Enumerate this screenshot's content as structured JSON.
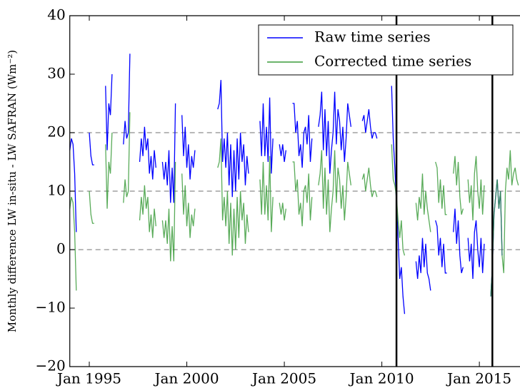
{
  "chart_data": {
    "type": "line",
    "ylabel": "Monthly difference LW in-situ - LW SAFRAN (Wm⁻²)",
    "x": [
      "1994-01",
      "1994-02",
      "1994-03",
      "1994-04",
      "1994-05",
      "1994-08",
      "1995-01",
      "1995-02",
      "1995-03",
      "1995-04",
      "1995-07",
      "1995-11",
      "1995-12",
      "1996-01",
      "1996-02",
      "1996-03",
      "1996-06",
      "1996-10",
      "1996-11",
      "1996-12",
      "1997-01",
      "1997-02",
      "1997-05",
      "1997-08",
      "1997-09",
      "1997-10",
      "1997-11",
      "1997-12",
      "1998-01",
      "1998-02",
      "1998-03",
      "1998-04",
      "1998-05",
      "1998-06",
      "1998-08",
      "1998-10",
      "1998-11",
      "1998-12",
      "1999-01",
      "1999-02",
      "1999-03",
      "1999-04",
      "1999-05",
      "1999-06",
      "1999-08",
      "1999-10",
      "1999-11",
      "1999-12",
      "2000-01",
      "2000-02",
      "2000-03",
      "2000-04",
      "2000-05",
      "2000-06",
      "2001-01",
      "2001-08",
      "2001-09",
      "2001-10",
      "2001-11",
      "2001-12",
      "2002-01",
      "2002-02",
      "2002-03",
      "2002-04",
      "2002-05",
      "2002-06",
      "2002-07",
      "2002-08",
      "2002-09",
      "2002-10",
      "2002-11",
      "2002-12",
      "2003-01",
      "2003-02",
      "2003-03",
      "2003-06",
      "2003-10",
      "2003-11",
      "2003-12",
      "2004-01",
      "2004-02",
      "2004-03",
      "2004-04",
      "2004-05",
      "2004-06",
      "2004-08",
      "2004-10",
      "2004-11",
      "2004-12",
      "2005-01",
      "2005-02",
      "2005-04",
      "2005-06",
      "2005-07",
      "2005-08",
      "2005-09",
      "2005-10",
      "2005-11",
      "2005-12",
      "2006-01",
      "2006-02",
      "2006-03",
      "2006-04",
      "2006-05",
      "2006-06",
      "2006-08",
      "2006-10",
      "2006-11",
      "2006-12",
      "2007-01",
      "2007-02",
      "2007-03",
      "2007-04",
      "2007-05",
      "2007-06",
      "2007-07",
      "2007-08",
      "2007-09",
      "2007-10",
      "2007-11",
      "2007-12",
      "2008-01",
      "2008-02",
      "2008-03",
      "2008-04",
      "2008-05",
      "2008-06",
      "2008-09",
      "2009-01",
      "2009-02",
      "2009-03",
      "2009-04",
      "2009-05",
      "2009-06",
      "2009-07",
      "2009-08",
      "2009-09",
      "2009-10",
      "2009-12",
      "2010-07",
      "2010-08",
      "2010-09",
      "2010-10",
      "2010-11",
      "2010-12",
      "2011-01",
      "2011-02",
      "2011-03",
      "2011-06",
      "2011-10",
      "2011-11",
      "2011-12",
      "2012-01",
      "2012-02",
      "2012-03",
      "2012-04",
      "2012-05",
      "2012-06",
      "2012-07",
      "2012-08",
      "2012-10",
      "2012-11",
      "2012-12",
      "2013-01",
      "2013-02",
      "2013-03",
      "2013-04",
      "2013-05",
      "2013-07",
      "2013-09",
      "2013-10",
      "2013-11",
      "2013-12",
      "2014-01",
      "2014-02",
      "2014-03",
      "2014-04",
      "2014-06",
      "2014-07",
      "2014-08",
      "2014-09",
      "2014-10",
      "2014-11",
      "2014-12",
      "2015-01",
      "2015-02",
      "2015-03",
      "2015-04",
      "2015-06",
      "2015-08",
      "2015-09",
      "2015-10",
      "2015-11",
      "2015-12",
      "2016-01",
      "2016-02",
      "2016-03",
      "2016-04",
      "2016-05",
      "2016-06",
      "2016-07",
      "2016-08",
      "2016-09",
      "2016-10",
      "2016-11",
      "2016-12",
      "2017-01"
    ],
    "series": [
      {
        "name": "Raw time series",
        "color": "#0000ff",
        "values": [
          17,
          19,
          18,
          13,
          3,
          null,
          20,
          16,
          14.5,
          14.5,
          null,
          28,
          17,
          25,
          23,
          30,
          null,
          18,
          22,
          19,
          20,
          33.5,
          null,
          15,
          19,
          16,
          21,
          17,
          19,
          13,
          16,
          12,
          17,
          14,
          null,
          15,
          12,
          15,
          11,
          17,
          8,
          14,
          8,
          25,
          null,
          23,
          16,
          21,
          14,
          18,
          12,
          16,
          14,
          17,
          null,
          24,
          25,
          29,
          15,
          19,
          14,
          20,
          11,
          18,
          9,
          17,
          10,
          19,
          12,
          20,
          15,
          18,
          11,
          16,
          13,
          null,
          22,
          16,
          25,
          16,
          21,
          15,
          26,
          13,
          19,
          null,
          18,
          16,
          18,
          15,
          17,
          null,
          25,
          25,
          20,
          22,
          16,
          18,
          14,
          20,
          21,
          18,
          23,
          15,
          19,
          null,
          21,
          23,
          27,
          17,
          24,
          16,
          22,
          13,
          17,
          20,
          27,
          18,
          24,
          22,
          17,
          21,
          15,
          19,
          25,
          23,
          21,
          null,
          22,
          23,
          20,
          22,
          24,
          21,
          19,
          20,
          20,
          19,
          null,
          28,
          19,
          14,
          8,
          2,
          -5,
          -3,
          -8,
          -11,
          null,
          -2,
          -5,
          -1,
          -4,
          2,
          -3,
          1,
          -4,
          -5,
          -7,
          null,
          5,
          4,
          -1,
          2,
          -3,
          1,
          -4,
          -4,
          null,
          3,
          7,
          1,
          5,
          -1,
          -4,
          -3,
          null,
          2,
          -2,
          1,
          -5,
          3,
          5,
          0,
          -3,
          2,
          -4,
          1,
          null,
          -8,
          -3,
          6,
          9,
          12,
          7,
          10,
          -1,
          null,
          null,
          null,
          null,
          null,
          null,
          null,
          null,
          null,
          null
        ]
      },
      {
        "name": "Corrected time series",
        "color": "#3c9c3c",
        "values": [
          7,
          9,
          8,
          3,
          -7,
          null,
          10,
          6,
          4.5,
          4.5,
          null,
          18,
          7,
          15,
          13,
          20,
          null,
          8,
          12,
          9,
          10,
          23.5,
          null,
          5,
          9,
          6,
          11,
          7,
          9,
          3,
          6,
          2,
          7,
          4,
          null,
          5,
          2,
          5,
          1,
          7,
          -2,
          4,
          -2,
          15,
          null,
          13,
          6,
          11,
          4,
          8,
          2,
          6,
          4,
          7,
          null,
          14,
          15,
          19,
          5,
          9,
          4,
          10,
          1,
          8,
          -1,
          7,
          0,
          9,
          2,
          10,
          5,
          8,
          1,
          6,
          3,
          null,
          12,
          6,
          15,
          6,
          11,
          5,
          16,
          3,
          9,
          null,
          8,
          6,
          8,
          5,
          7,
          null,
          15,
          15,
          10,
          12,
          6,
          8,
          4,
          10,
          11,
          8,
          13,
          5,
          9,
          null,
          11,
          13,
          17,
          7,
          14,
          6,
          12,
          3,
          7,
          10,
          17,
          8,
          14,
          12,
          7,
          11,
          5,
          9,
          15,
          13,
          11,
          null,
          12,
          13,
          10,
          12,
          14,
          11,
          9,
          10,
          10,
          9,
          null,
          18,
          12,
          11,
          9,
          5,
          2,
          5,
          0,
          -1,
          null,
          8,
          5,
          9,
          7,
          13,
          6,
          10,
          7,
          5,
          3,
          null,
          15,
          14,
          8,
          12,
          7,
          11,
          6,
          6,
          null,
          13,
          16,
          11,
          15,
          9,
          6,
          7,
          null,
          12,
          8,
          11,
          5,
          13,
          16,
          10,
          7,
          12,
          6,
          11,
          null,
          -8,
          -3,
          6,
          9,
          12,
          7,
          10,
          -1,
          -4,
          10,
          14,
          12,
          17,
          11,
          13,
          14,
          12,
          11
        ]
      }
    ],
    "xlim": [
      "1994-01",
      "2017-02"
    ],
    "xticks": [
      {
        "value": "1995-01",
        "label": "Jan 1995"
      },
      {
        "value": "2000-01",
        "label": "Jan 2000"
      },
      {
        "value": "2005-01",
        "label": "Jan 2005"
      },
      {
        "value": "2010-01",
        "label": "Jan 2010"
      },
      {
        "value": "2015-01",
        "label": "Jan 2015"
      }
    ],
    "ylim": [
      -20,
      40
    ],
    "yticks": [
      {
        "value": -20,
        "label": "−20"
      },
      {
        "value": -10,
        "label": "−10"
      },
      0,
      10,
      20,
      30,
      40
    ],
    "hlines": [
      0,
      10,
      20
    ],
    "vlines": [
      "2010-10",
      "2015-09"
    ],
    "legend": "upper right"
  }
}
